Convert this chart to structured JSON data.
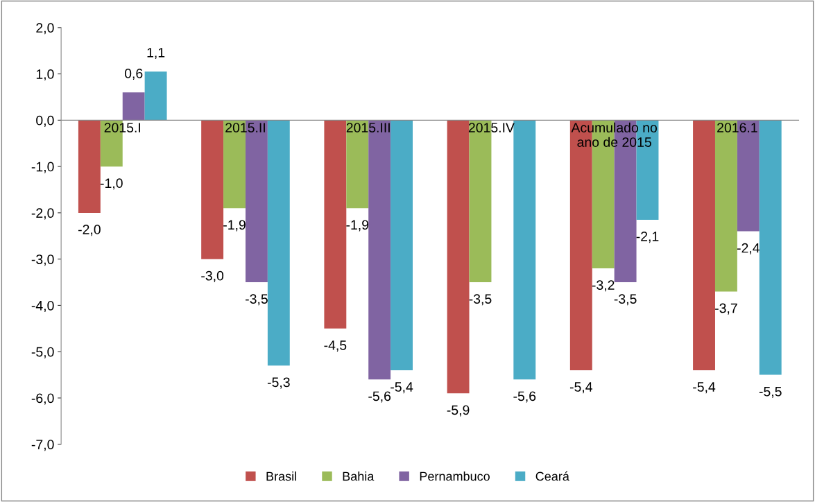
{
  "chart_data": {
    "type": "bar",
    "categories": [
      "2015.I",
      "2015.II",
      "2015.III",
      "2015.IV",
      "Acumulado no\nano de 2015",
      "2016.1"
    ],
    "series": [
      {
        "name": "Brasil",
        "color": "#c0504d",
        "values": [
          -2.0,
          -3.0,
          -4.5,
          -5.9,
          -5.4,
          -5.4
        ],
        "value_labels": [
          "-2,0",
          "-3,0",
          "-4,5",
          "-5,9",
          "-5,4",
          "-5,4"
        ]
      },
      {
        "name": "Bahia",
        "color": "#9bbb59",
        "values": [
          -1.0,
          -1.9,
          -1.9,
          -3.5,
          -3.2,
          -3.7
        ],
        "value_labels": [
          "-1,0",
          "-1,9",
          "-1,9",
          "-3,5",
          "-3,2",
          "-3,7"
        ]
      },
      {
        "name": "Pernambuco",
        "color": "#8064a2",
        "values": [
          0.6,
          -3.5,
          -5.6,
          null,
          -3.5,
          -2.4
        ],
        "value_labels": [
          "0,6",
          "-3,5",
          "-5,6",
          null,
          "-3,5",
          "-2,4"
        ]
      },
      {
        "name": "Ceará",
        "color": "#4bacc6",
        "values": [
          1.05,
          -5.3,
          -5.4,
          -5.6,
          -2.15,
          -5.5
        ],
        "value_labels": [
          "1,1",
          "-5,3",
          "-5,4",
          "-5,6",
          "-2,1",
          "-5,5"
        ]
      }
    ],
    "ylim": [
      -7.0,
      2.0
    ],
    "yticks": [
      {
        "value": -7,
        "label": "-7,0"
      },
      {
        "value": -6,
        "label": "-6,0"
      },
      {
        "value": -5,
        "label": "-5,0"
      },
      {
        "value": -4,
        "label": "-4,0"
      },
      {
        "value": -3,
        "label": "-3,0"
      },
      {
        "value": -2,
        "label": "-2,0"
      },
      {
        "value": -1,
        "label": "-1,0"
      },
      {
        "value": 0,
        "label": "0,0"
      },
      {
        "value": 1,
        "label": "1,0"
      },
      {
        "value": 2,
        "label": "2,0"
      }
    ],
    "grid": false,
    "legend": "bottom"
  }
}
